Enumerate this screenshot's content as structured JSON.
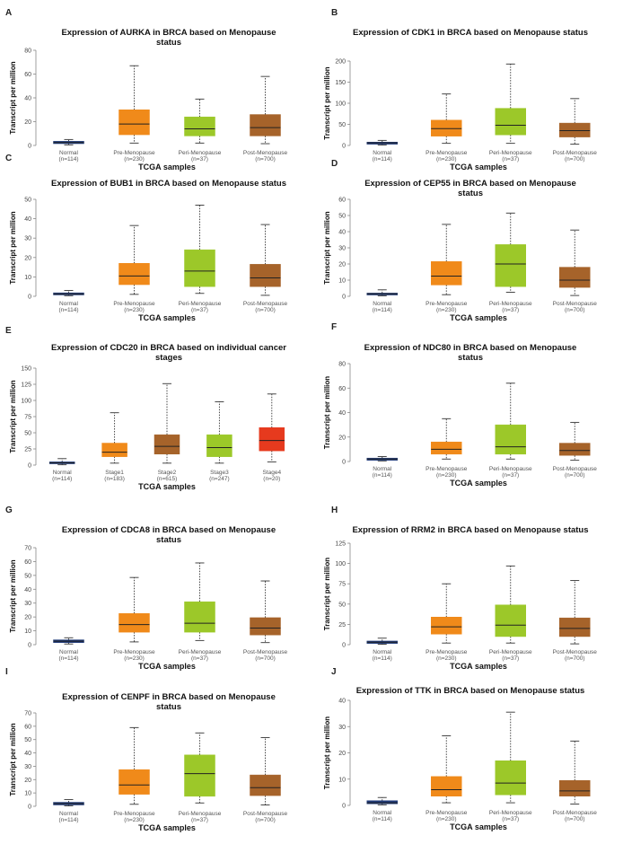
{
  "figure": {
    "xlabel": "TCGA samples",
    "ylabel": "Transcript per million"
  },
  "colors": {
    "Normal": "#1f3a78",
    "Pre-Menopause": "#f08a1a",
    "Peri-Menopause": "#9cc829",
    "Post-Menopause": "#a6632a",
    "Stage1": "#f08a1a",
    "Stage2": "#a6632a",
    "Stage3": "#9cc829",
    "Stage4": "#e63a1e"
  },
  "chart_data": [
    {
      "panel": "A",
      "type": "box",
      "title": [
        "Expression of AURKA in BRCA based on Menopause",
        "status"
      ],
      "ylim": [
        0,
        80
      ],
      "yticks": [
        0,
        20,
        40,
        60,
        80
      ],
      "categories": [
        "Normal",
        "Pre-Menopause",
        "Peri-Menopause",
        "Post-Menopause"
      ],
      "ns": [
        "(n=114)",
        "(n=230)",
        "(n=37)",
        "(n=700)"
      ],
      "boxes": [
        {
          "min": 0.5,
          "q1": 1.5,
          "median": 2.5,
          "q3": 3.5,
          "max": 5
        },
        {
          "min": 2,
          "q1": 9,
          "median": 18,
          "q3": 30,
          "max": 67
        },
        {
          "min": 2,
          "q1": 8,
          "median": 14,
          "q3": 24,
          "max": 39
        },
        {
          "min": 1.5,
          "q1": 8,
          "median": 15,
          "q3": 26,
          "max": 58
        }
      ]
    },
    {
      "panel": "B",
      "type": "box",
      "title": [
        "Expression of CDK1 in BRCA based on Menopause status"
      ],
      "ylim": [
        0,
        200
      ],
      "yticks": [
        0,
        50,
        100,
        150,
        200
      ],
      "categories": [
        "Normal",
        "Pre-Menopause",
        "Peri-Menopause",
        "Post-Menopause"
      ],
      "ns": [
        "(n=114)",
        "(n=230)",
        "(n=37)",
        "(n=700)"
      ],
      "boxes": [
        {
          "min": 1,
          "q1": 3,
          "median": 6,
          "q3": 8,
          "max": 12
        },
        {
          "min": 5,
          "q1": 22,
          "median": 40,
          "q3": 60,
          "max": 122
        },
        {
          "min": 5,
          "q1": 25,
          "median": 48,
          "q3": 88,
          "max": 193
        },
        {
          "min": 3,
          "q1": 20,
          "median": 35,
          "q3": 53,
          "max": 111
        }
      ]
    },
    {
      "panel": "C",
      "type": "box",
      "title": [
        "Expression of BUB1 in BRCA based on Menopause status"
      ],
      "ylim": [
        0,
        50
      ],
      "yticks": [
        0,
        10,
        20,
        30,
        40,
        50
      ],
      "categories": [
        "Normal",
        "Pre-Menopause",
        "Peri-Menopause",
        "Post-Menopause"
      ],
      "ns": [
        "(n=114)",
        "(n=230)",
        "(n=37)",
        "(n=700)"
      ],
      "boxes": [
        {
          "min": 0.3,
          "q1": 0.7,
          "median": 1.2,
          "q3": 1.8,
          "max": 3
        },
        {
          "min": 1,
          "q1": 6,
          "median": 10.5,
          "q3": 17,
          "max": 36.5
        },
        {
          "min": 1.5,
          "q1": 5,
          "median": 13,
          "q3": 24,
          "max": 47
        },
        {
          "min": 0.5,
          "q1": 5,
          "median": 9.5,
          "q3": 16.5,
          "max": 37
        }
      ]
    },
    {
      "panel": "D",
      "type": "box",
      "title": [
        "Expression of CEP55 in BRCA based on Menopause",
        "status"
      ],
      "ylim": [
        0,
        60
      ],
      "yticks": [
        0,
        10,
        20,
        30,
        40,
        50,
        60
      ],
      "categories": [
        "Normal",
        "Pre-Menopause",
        "Peri-Menopause",
        "Post-Menopause"
      ],
      "ns": [
        "(n=114)",
        "(n=230)",
        "(n=37)",
        "(n=700)"
      ],
      "boxes": [
        {
          "min": 0.3,
          "q1": 0.8,
          "median": 1.5,
          "q3": 2,
          "max": 4
        },
        {
          "min": 1,
          "q1": 7,
          "median": 12.5,
          "q3": 21.5,
          "max": 44.5
        },
        {
          "min": 2.5,
          "q1": 6,
          "median": 20,
          "q3": 32,
          "max": 51.5
        },
        {
          "min": 0.5,
          "q1": 5.5,
          "median": 10,
          "q3": 18,
          "max": 41
        }
      ]
    },
    {
      "panel": "E",
      "type": "box",
      "title": [
        "Expression of CDC20 in BRCA based on individual cancer",
        "stages"
      ],
      "ylim": [
        0,
        150
      ],
      "yticks": [
        0,
        25,
        50,
        75,
        100,
        125,
        150
      ],
      "categories": [
        "Normal",
        "Stage1",
        "Stage2",
        "Stage3",
        "Stage4"
      ],
      "ns": [
        "(n=114)",
        "(n=183)",
        "(n=615)",
        "(n=247)",
        "(n=20)"
      ],
      "boxes": [
        {
          "min": 0.5,
          "q1": 2,
          "median": 3.5,
          "q3": 5,
          "max": 10
        },
        {
          "min": 3,
          "q1": 13,
          "median": 20,
          "q3": 34,
          "max": 81
        },
        {
          "min": 3,
          "q1": 17,
          "median": 29,
          "q3": 47,
          "max": 126
        },
        {
          "min": 3,
          "q1": 13,
          "median": 27,
          "q3": 47,
          "max": 98
        },
        {
          "min": 5,
          "q1": 22,
          "median": 38,
          "q3": 58,
          "max": 110
        }
      ]
    },
    {
      "panel": "F",
      "type": "box",
      "title": [
        "Expression of NDC80 in BRCA based on Menopause",
        "status"
      ],
      "ylim": [
        0,
        80
      ],
      "yticks": [
        0,
        20,
        40,
        60,
        80
      ],
      "categories": [
        "Normal",
        "Pre-Menopause",
        "Peri-Menopause",
        "Post-Menopause"
      ],
      "ns": [
        "(n=114)",
        "(n=230)",
        "(n=37)",
        "(n=700)"
      ],
      "boxes": [
        {
          "min": 0.5,
          "q1": 1,
          "median": 2,
          "q3": 2.8,
          "max": 4
        },
        {
          "min": 2,
          "q1": 6,
          "median": 10,
          "q3": 16,
          "max": 35
        },
        {
          "min": 2,
          "q1": 6,
          "median": 12,
          "q3": 30,
          "max": 64
        },
        {
          "min": 1,
          "q1": 5,
          "median": 9,
          "q3": 15,
          "max": 32
        }
      ]
    },
    {
      "panel": "G",
      "type": "box",
      "title": [
        "Expression of CDCA8 in BRCA based on Menopause",
        "status"
      ],
      "ylim": [
        0,
        70
      ],
      "yticks": [
        0,
        10,
        20,
        30,
        40,
        50,
        60,
        70
      ],
      "categories": [
        "Normal",
        "Pre-Menopause",
        "Peri-Menopause",
        "Post-Menopause"
      ],
      "ns": [
        "(n=114)",
        "(n=230)",
        "(n=37)",
        "(n=700)"
      ],
      "boxes": [
        {
          "min": 0.5,
          "q1": 1.5,
          "median": 2.5,
          "q3": 3.5,
          "max": 5
        },
        {
          "min": 2,
          "q1": 9,
          "median": 14.5,
          "q3": 22.5,
          "max": 48.5
        },
        {
          "min": 3,
          "q1": 9,
          "median": 15.5,
          "q3": 31,
          "max": 59
        },
        {
          "min": 1.5,
          "q1": 7,
          "median": 12,
          "q3": 19.5,
          "max": 46
        }
      ]
    },
    {
      "panel": "H",
      "type": "box",
      "title": [
        "Expression of RRM2 in BRCA based on Menopause status"
      ],
      "ylim": [
        0,
        125
      ],
      "yticks": [
        0,
        25,
        50,
        75,
        100,
        125
      ],
      "categories": [
        "Normal",
        "Pre-Menopause",
        "Peri-Menopause",
        "Post-Menopause"
      ],
      "ns": [
        "(n=114)",
        "(n=230)",
        "(n=37)",
        "(n=700)"
      ],
      "boxes": [
        {
          "min": 0.5,
          "q1": 1.5,
          "median": 3,
          "q3": 4.5,
          "max": 8
        },
        {
          "min": 2,
          "q1": 13,
          "median": 22,
          "q3": 34,
          "max": 75
        },
        {
          "min": 2,
          "q1": 10,
          "median": 24,
          "q3": 49,
          "max": 97
        },
        {
          "min": 1,
          "q1": 10,
          "median": 20,
          "q3": 33,
          "max": 79
        }
      ]
    },
    {
      "panel": "I",
      "type": "box",
      "title": [
        "Expression of CENPF in BRCA based on Menopause",
        "status"
      ],
      "ylim": [
        0,
        70
      ],
      "yticks": [
        0,
        10,
        20,
        30,
        40,
        50,
        60,
        70
      ],
      "categories": [
        "Normal",
        "Pre-Menopause",
        "Peri-Menopause",
        "Post-Menopause"
      ],
      "ns": [
        "(n=114)",
        "(n=230)",
        "(n=37)",
        "(n=700)"
      ],
      "boxes": [
        {
          "min": 0.3,
          "q1": 1,
          "median": 2,
          "q3": 3,
          "max": 5
        },
        {
          "min": 1.5,
          "q1": 9,
          "median": 16,
          "q3": 27.5,
          "max": 59
        },
        {
          "min": 2.5,
          "q1": 7.5,
          "median": 24.5,
          "q3": 38.5,
          "max": 55
        },
        {
          "min": 1,
          "q1": 8,
          "median": 14,
          "q3": 23.5,
          "max": 51.5
        }
      ]
    },
    {
      "panel": "J",
      "type": "box",
      "title": [
        "Expression of TTK in BRCA based on Menopause status"
      ],
      "ylim": [
        0,
        40
      ],
      "yticks": [
        0,
        10,
        20,
        30,
        40
      ],
      "categories": [
        "Normal",
        "Pre-Menopause",
        "Peri-Menopause",
        "Post-Menopause"
      ],
      "ns": [
        "(n=114)",
        "(n=230)",
        "(n=37)",
        "(n=700)"
      ],
      "boxes": [
        {
          "min": 0.2,
          "q1": 0.6,
          "median": 1,
          "q3": 1.8,
          "max": 3
        },
        {
          "min": 1,
          "q1": 3.5,
          "median": 6,
          "q3": 11,
          "max": 26.5
        },
        {
          "min": 1,
          "q1": 4,
          "median": 8.5,
          "q3": 17,
          "max": 35.5
        },
        {
          "min": 0.5,
          "q1": 3.5,
          "median": 5.5,
          "q3": 9.5,
          "max": 24.5
        }
      ]
    }
  ]
}
